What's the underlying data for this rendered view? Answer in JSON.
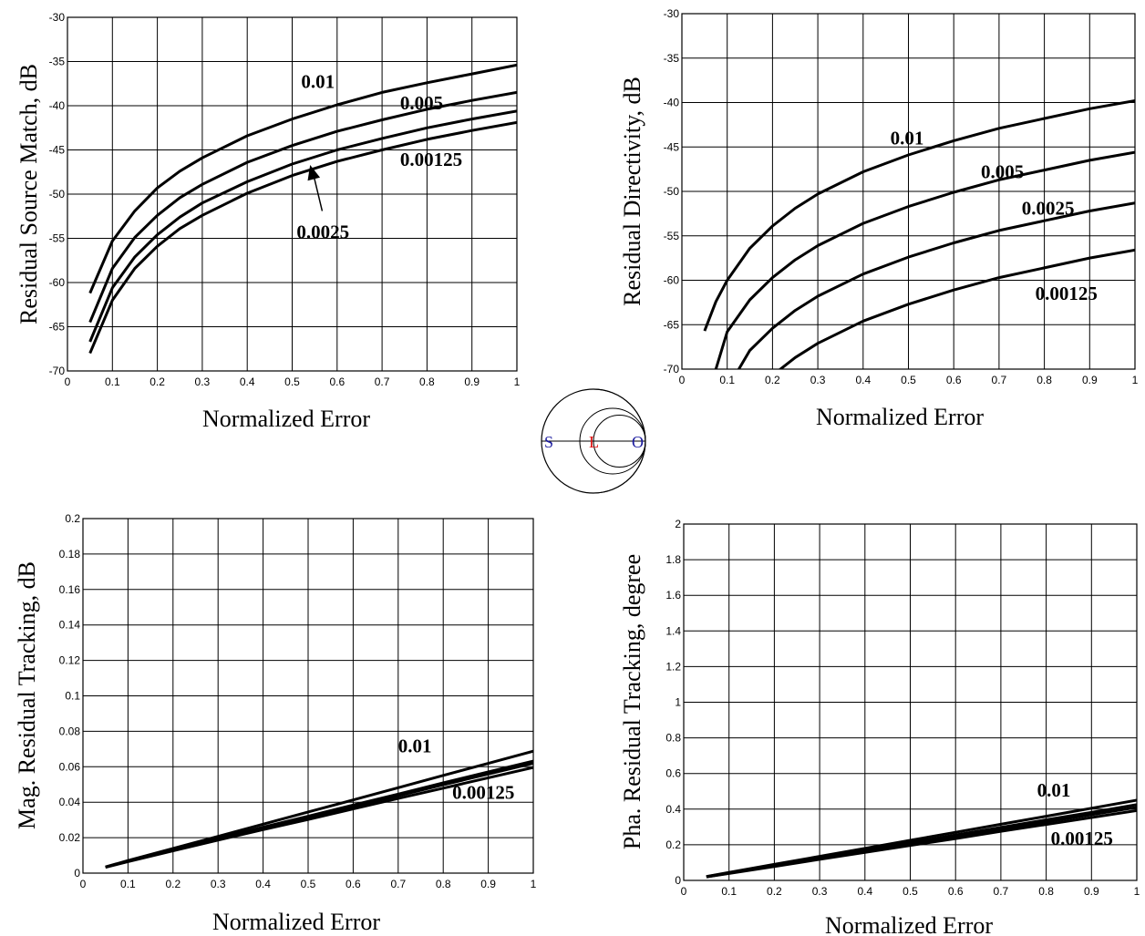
{
  "chart_data": [
    {
      "type": "line",
      "xlabel": "Normalized Error",
      "ylabel": "Residual Source Match, dB",
      "xlim": [
        0,
        1
      ],
      "ylim": [
        -70,
        -30
      ],
      "xticks": [
        0,
        0.1,
        0.2,
        0.3,
        0.4,
        0.5,
        0.6,
        0.7,
        0.8,
        0.9,
        1
      ],
      "xtick_labels": [
        "0",
        "0.1",
        "0.2",
        "0.3",
        "0.4",
        "0.5",
        "0.6",
        "0.7",
        "0.8",
        "0.9",
        "1"
      ],
      "yticks": [
        -70,
        -65,
        -60,
        -55,
        -50,
        -45,
        -40,
        -35,
        -30
      ],
      "ytick_labels": [
        "-70",
        "-65",
        "-60",
        "-55",
        "-50",
        "-45",
        "-40",
        "-35",
        "-30"
      ],
      "grid": true,
      "x": [
        0.05,
        0.1,
        0.15,
        0.2,
        0.25,
        0.3,
        0.4,
        0.5,
        0.6,
        0.7,
        0.8,
        0.9,
        1.0
      ],
      "series": [
        {
          "name": "0.01",
          "values": [
            -61.2,
            -55.3,
            -51.9,
            -49.3,
            -47.4,
            -45.9,
            -43.4,
            -41.5,
            -39.9,
            -38.5,
            -37.4,
            -36.4,
            -35.4
          ]
        },
        {
          "name": "0.005",
          "values": [
            -64.5,
            -58.4,
            -54.9,
            -52.4,
            -50.4,
            -48.9,
            -46.4,
            -44.5,
            -42.9,
            -41.6,
            -40.4,
            -39.4,
            -38.5
          ]
        },
        {
          "name": "0.0025",
          "values": [
            -66.7,
            -60.6,
            -57.1,
            -54.6,
            -52.6,
            -51.0,
            -48.6,
            -46.6,
            -45.0,
            -43.7,
            -42.5,
            -41.5,
            -40.6
          ]
        },
        {
          "name": "0.00125",
          "values": [
            -68.0,
            -62.0,
            -58.4,
            -55.9,
            -53.9,
            -52.4,
            -49.9,
            -47.9,
            -46.3,
            -45.0,
            -43.8,
            -42.8,
            -41.9
          ]
        }
      ],
      "annotations": [
        {
          "text": "0.01",
          "x": 0.52,
          "y": -38.0
        },
        {
          "text": "0.005",
          "x": 0.74,
          "y": -40.4
        },
        {
          "text": "0.00125",
          "x": 0.74,
          "y": -46.8
        },
        {
          "text": "0.0025",
          "x": 0.51,
          "y": -55.0,
          "arrow_to": [
            0.54,
            -46.7
          ]
        }
      ]
    },
    {
      "type": "line",
      "xlabel": "Normalized Error",
      "ylabel": "Residual Directivity, dB",
      "xlim": [
        0,
        1
      ],
      "ylim": [
        -70,
        -30
      ],
      "xticks": [
        0,
        0.1,
        0.2,
        0.3,
        0.4,
        0.5,
        0.6,
        0.7,
        0.8,
        0.9,
        1
      ],
      "xtick_labels": [
        "0",
        "0.1",
        "0.2",
        "0.3",
        "0.4",
        "0.5",
        "0.6",
        "0.7",
        "0.8",
        "0.9",
        "1"
      ],
      "yticks": [
        -70,
        -65,
        -60,
        -55,
        -50,
        -45,
        -40,
        -35,
        -30
      ],
      "ytick_labels": [
        "-70",
        "-65",
        "-60",
        "-55",
        "-50",
        "-45",
        "-40",
        "-35",
        "-30"
      ],
      "grid": true,
      "x": [
        0.05,
        0.075,
        0.1,
        0.15,
        0.2,
        0.25,
        0.3,
        0.4,
        0.5,
        0.6,
        0.7,
        0.8,
        0.9,
        1.0
      ],
      "series": [
        {
          "name": "0.01",
          "values": [
            -65.7,
            -62.4,
            -60.0,
            -56.4,
            -53.9,
            -51.9,
            -50.3,
            -47.8,
            -45.9,
            -44.3,
            -42.9,
            -41.8,
            -40.7,
            -39.8
          ]
        },
        {
          "name": "0.005",
          "values": [
            null,
            -70.0,
            -65.8,
            -62.2,
            -59.7,
            -57.7,
            -56.1,
            -53.6,
            -51.7,
            -50.1,
            -48.7,
            -47.6,
            -46.5,
            -45.6
          ]
        },
        {
          "name": "0.0025",
          "values": [
            null,
            null,
            null,
            -67.9,
            -65.4,
            -63.4,
            -61.8,
            -59.3,
            -57.4,
            -55.8,
            -54.4,
            -53.3,
            -52.2,
            -51.3
          ]
        },
        {
          "name": "0.00125",
          "values": [
            null,
            null,
            null,
            null,
            null,
            -68.7,
            -67.1,
            -64.6,
            -62.7,
            -61.1,
            -59.7,
            -58.6,
            -57.5,
            -56.6
          ]
        }
      ],
      "series_start_x": {
        "0.005": 0.065,
        "0.0025": 0.12,
        "0.00125": 0.205
      },
      "annotations": [
        {
          "text": "0.01",
          "x": 0.46,
          "y": -44.7
        },
        {
          "text": "0.005",
          "x": 0.66,
          "y": -48.5
        },
        {
          "text": "0.0025",
          "x": 0.75,
          "y": -52.6
        },
        {
          "text": "0.00125",
          "x": 0.78,
          "y": -62.2
        }
      ]
    },
    {
      "type": "line",
      "xlabel": "Normalized Error",
      "ylabel": "Mag. Residual Tracking, dB",
      "xlim": [
        0,
        1
      ],
      "ylim": [
        0,
        0.2
      ],
      "xticks": [
        0,
        0.1,
        0.2,
        0.3,
        0.4,
        0.5,
        0.6,
        0.7,
        0.8,
        0.9,
        1
      ],
      "xtick_labels": [
        "0",
        "0.1",
        "0.2",
        "0.3",
        "0.4",
        "0.5",
        "0.6",
        "0.7",
        "0.8",
        "0.9",
        "1"
      ],
      "yticks": [
        0,
        0.02,
        0.04,
        0.06,
        0.08,
        0.1,
        0.12,
        0.14,
        0.16,
        0.18,
        0.2
      ],
      "ytick_labels": [
        "0",
        "0.02",
        "0.04",
        "0.06",
        "0.08",
        "0.1",
        "0.12",
        "0.14",
        "0.16",
        "0.18",
        "0.2"
      ],
      "grid": true,
      "x": [
        0.05,
        0.1,
        0.2,
        0.3,
        0.4,
        0.5,
        0.6,
        0.7,
        0.8,
        0.9,
        1.0
      ],
      "series": [
        {
          "name": "0.01",
          "values": [
            0.0035,
            0.0071,
            0.0139,
            0.0207,
            0.0276,
            0.0345,
            0.0413,
            0.0482,
            0.0551,
            0.0619,
            0.0688
          ]
        },
        {
          "name": "0.005",
          "values": [
            0.0034,
            0.0068,
            0.0133,
            0.0196,
            0.0259,
            0.0321,
            0.0384,
            0.0446,
            0.0509,
            0.0571,
            0.0632
          ]
        },
        {
          "name": "0.0025",
          "values": [
            0.0033,
            0.0066,
            0.0129,
            0.0191,
            0.0252,
            0.0313,
            0.0375,
            0.0436,
            0.0498,
            0.0559,
            0.062
          ]
        },
        {
          "name": "0.00125",
          "values": [
            0.0033,
            0.0065,
            0.0126,
            0.0186,
            0.0245,
            0.0303,
            0.0362,
            0.0421,
            0.0479,
            0.0538,
            0.0596
          ]
        }
      ],
      "annotations": [
        {
          "text": "0.01",
          "x": 0.7,
          "y": 0.068
        },
        {
          "text": "0.00125",
          "x": 0.82,
          "y": 0.042
        }
      ]
    },
    {
      "type": "line",
      "xlabel": "Normalized Error",
      "ylabel": "Pha. Residual Tracking, degree",
      "xlim": [
        0,
        1
      ],
      "ylim": [
        0,
        2
      ],
      "xticks": [
        0,
        0.1,
        0.2,
        0.3,
        0.4,
        0.5,
        0.6,
        0.7,
        0.8,
        0.9,
        1
      ],
      "xtick_labels": [
        "0",
        "0.1",
        "0.2",
        "0.3",
        "0.4",
        "0.5",
        "0.6",
        "0.7",
        "0.8",
        "0.9",
        "1"
      ],
      "yticks": [
        0,
        0.2,
        0.4,
        0.6,
        0.8,
        1,
        1.2,
        1.4,
        1.6,
        1.8,
        2
      ],
      "ytick_labels": [
        "0",
        "0.2",
        "0.4",
        "0.6",
        "0.8",
        "1",
        "1.2",
        "1.4",
        "1.6",
        "1.8",
        "2"
      ],
      "grid": true,
      "x": [
        0.05,
        0.1,
        0.2,
        0.3,
        0.4,
        0.5,
        0.6,
        0.7,
        0.8,
        0.9,
        1.0
      ],
      "series": [
        {
          "name": "0.01",
          "values": [
            0.022,
            0.045,
            0.09,
            0.135,
            0.18,
            0.225,
            0.27,
            0.315,
            0.36,
            0.405,
            0.45
          ]
        },
        {
          "name": "0.005",
          "values": [
            0.021,
            0.042,
            0.085,
            0.127,
            0.17,
            0.212,
            0.255,
            0.297,
            0.34,
            0.382,
            0.425
          ]
        },
        {
          "name": "0.0025",
          "values": [
            0.02,
            0.041,
            0.082,
            0.123,
            0.164,
            0.205,
            0.246,
            0.287,
            0.328,
            0.369,
            0.41
          ]
        },
        {
          "name": "0.00125",
          "values": [
            0.02,
            0.039,
            0.078,
            0.118,
            0.157,
            0.196,
            0.235,
            0.275,
            0.314,
            0.353,
            0.392
          ]
        }
      ],
      "annotations": [
        {
          "text": "0.01",
          "x": 0.78,
          "y": 0.47
        },
        {
          "text": "0.00125",
          "x": 0.81,
          "y": 0.2
        }
      ]
    }
  ],
  "smith_chart": {
    "labels": [
      {
        "text": "S",
        "color": "#1a1a9e"
      },
      {
        "text": "L",
        "color": "#e01010"
      },
      {
        "text": "O",
        "color": "#1a1a9e"
      }
    ]
  }
}
